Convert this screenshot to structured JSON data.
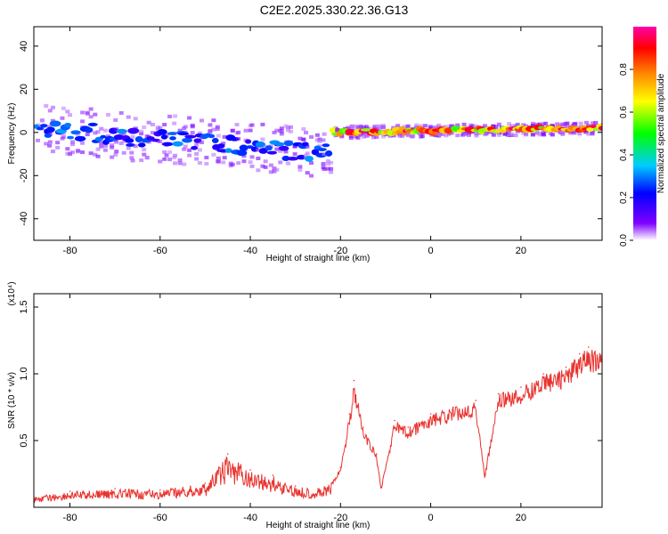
{
  "title": "C2E2.2025.330.22.36.G13",
  "chart_data": [
    {
      "type": "heatmap",
      "xlabel": "Height of straight line (km)",
      "ylabel": "Frequency (Hz)",
      "xlim": [
        -88,
        38
      ],
      "ylim": [
        -50,
        49
      ],
      "x_ticks": [
        -80,
        -60,
        -40,
        -20,
        0,
        20
      ],
      "y_ticks": [
        -40,
        -20,
        0,
        20,
        40
      ],
      "colorbar": {
        "label": "Normalized spectral amplitude",
        "range": [
          0,
          1
        ],
        "ticks": [
          0.0,
          0.2,
          0.4,
          0.6,
          0.8
        ],
        "colors": [
          "#ffffff",
          "#7f00ff",
          "#0000ff",
          "#00ccff",
          "#00ff00",
          "#ffff00",
          "#ff8800",
          "#ff0000",
          "#ff00aa"
        ]
      },
      "segments": [
        {
          "x0": -88,
          "x1": -22,
          "f_start": 2,
          "f_end": -10,
          "band_hz": 16,
          "peak_amplitude": 0.35
        },
        {
          "x0": -22,
          "x1": 38,
          "f_start": 0,
          "f_end": 2,
          "band_hz": 4,
          "peak_amplitude": 0.95
        }
      ]
    },
    {
      "type": "line",
      "xlabel": "Height of straight line (km)",
      "ylabel": "SNR (10 * v/v)",
      "y_exponent": "(x10⁴)",
      "xlim": [
        -88,
        38
      ],
      "ylim": [
        0,
        1.6
      ],
      "x_ticks": [
        -80,
        -60,
        -40,
        -20,
        0,
        20
      ],
      "y_ticks": [
        0.5,
        1.0,
        1.5
      ],
      "series": [
        {
          "color": "#e8322e",
          "x": [
            -88,
            -80,
            -70,
            -60,
            -50,
            -45,
            -40,
            -35,
            -30,
            -25,
            -22,
            -20,
            -18,
            -17,
            -15,
            -12,
            -11,
            -8,
            -5,
            0,
            5,
            10,
            12,
            15,
            20,
            25,
            30,
            33,
            35,
            38
          ],
          "values": [
            0.08,
            0.12,
            0.14,
            0.13,
            0.18,
            0.4,
            0.28,
            0.24,
            0.16,
            0.14,
            0.18,
            0.3,
            0.7,
            0.95,
            0.6,
            0.4,
            0.15,
            0.65,
            0.6,
            0.7,
            0.75,
            0.8,
            0.25,
            0.85,
            0.9,
            1.0,
            1.05,
            1.15,
            1.2,
            1.15
          ]
        }
      ]
    }
  ]
}
